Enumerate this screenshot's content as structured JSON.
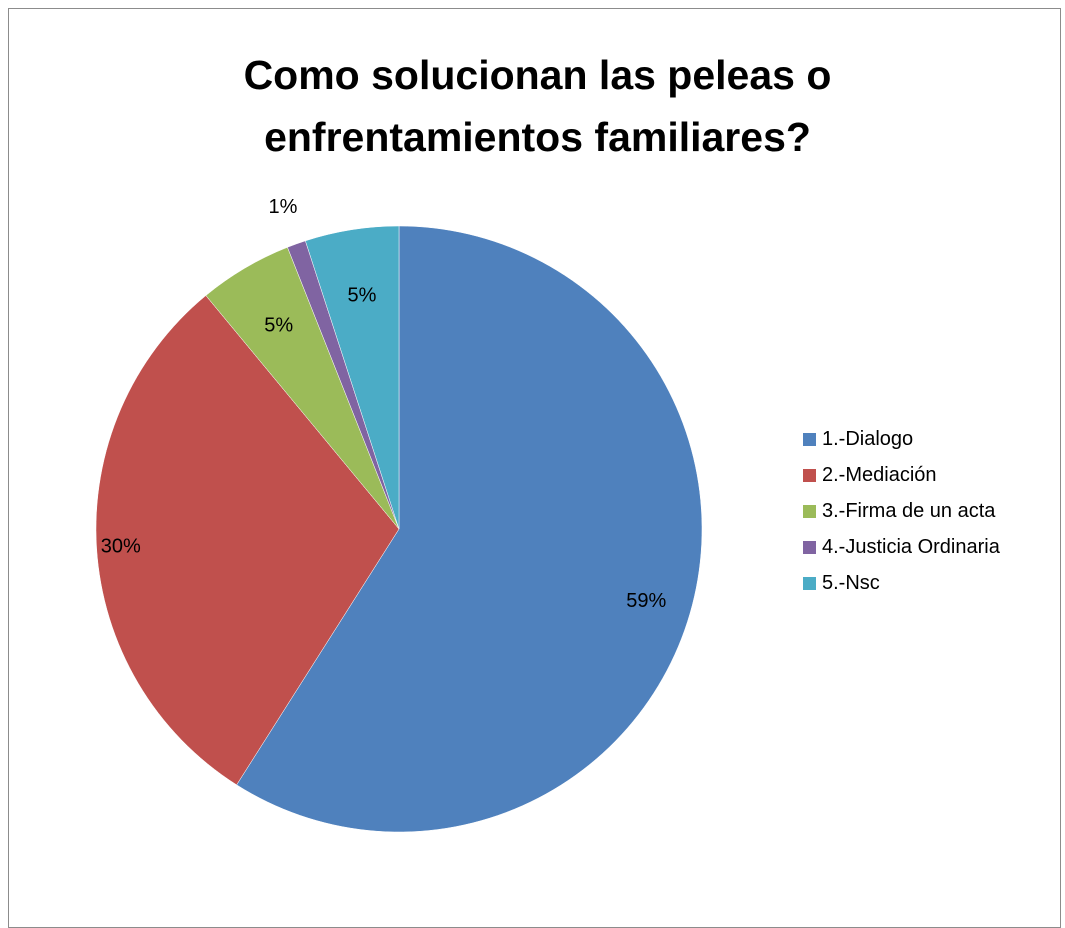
{
  "chart_data": {
    "type": "pie",
    "title": [
      "Como solucionan las peleas o",
      "enfrentamientos familiares?"
    ],
    "categories": [
      "1.-Dialogo",
      "2.-Mediación",
      "3.-Firma de un acta",
      "4.-Justicia Ordinaria",
      "5.-Nsc"
    ],
    "values": [
      59,
      30,
      5,
      1,
      5
    ],
    "data_labels": [
      "59%",
      "30%",
      "5%",
      "1%",
      "5%"
    ],
    "colors": [
      "#4f81bd",
      "#c0504d",
      "#9bbb59",
      "#8064a2",
      "#4bacc6"
    ],
    "legend_position": "right"
  }
}
